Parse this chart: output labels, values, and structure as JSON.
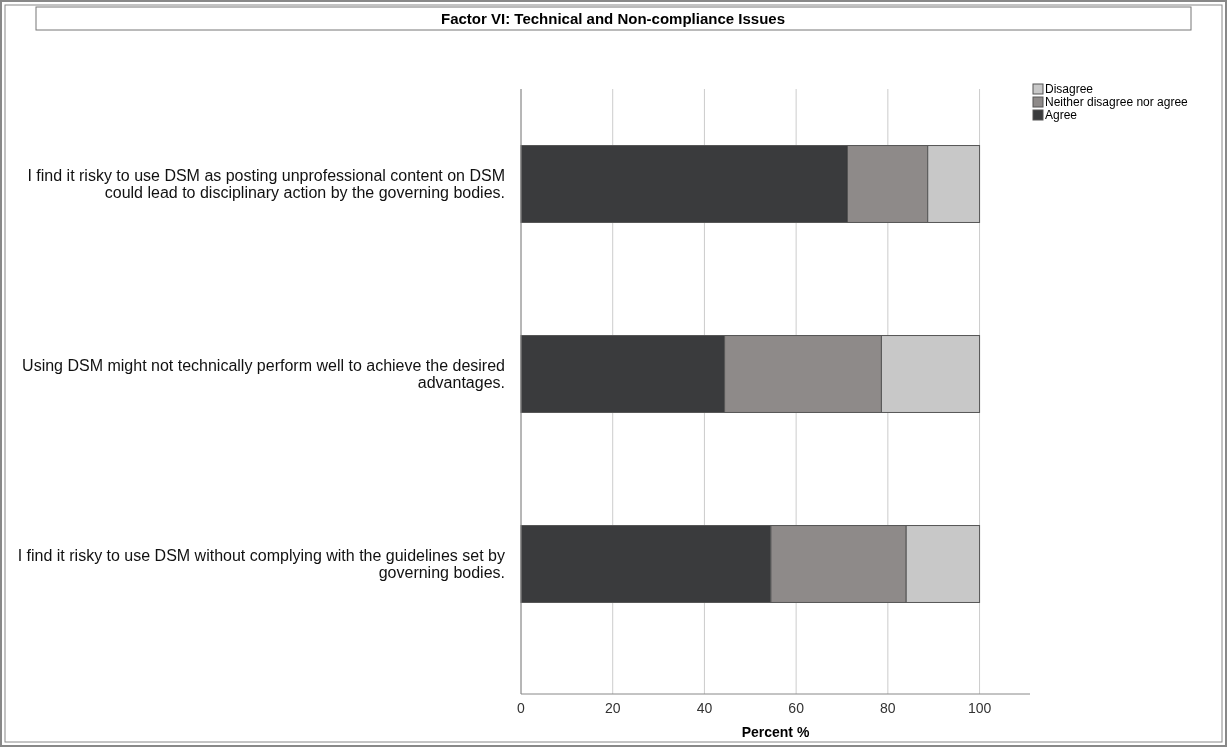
{
  "chart_data": {
    "type": "bar",
    "orientation": "horizontal",
    "stacked": true,
    "title": "Factor VI: Technical and Non-compliance Issues",
    "xlabel": "Percent %",
    "categories": [
      "I find it risky to use DSM as posting unprofessional content on DSM could lead to disciplinary action by the governing bodies.",
      "Using DSM might not technically perform well to achieve the desired advantages.",
      "I find it risky to use DSM without complying with the guidelines set by governing bodies."
    ],
    "series": [
      {
        "name": "Agree",
        "color": "#3a3b3d",
        "values": [
          71.2,
          44.4,
          54.5
        ]
      },
      {
        "name": "Neither disagree nor agree",
        "color": "#8e8a89",
        "values": [
          17.5,
          34.2,
          29.5
        ]
      },
      {
        "name": "Disagree",
        "color": "#c8c8c8",
        "values": [
          11.3,
          21.4,
          16.0
        ]
      }
    ],
    "xlim": [
      0,
      111
    ],
    "xticks": [
      0,
      20,
      40,
      60,
      80,
      100
    ],
    "grid": "x",
    "legend": "top right"
  }
}
